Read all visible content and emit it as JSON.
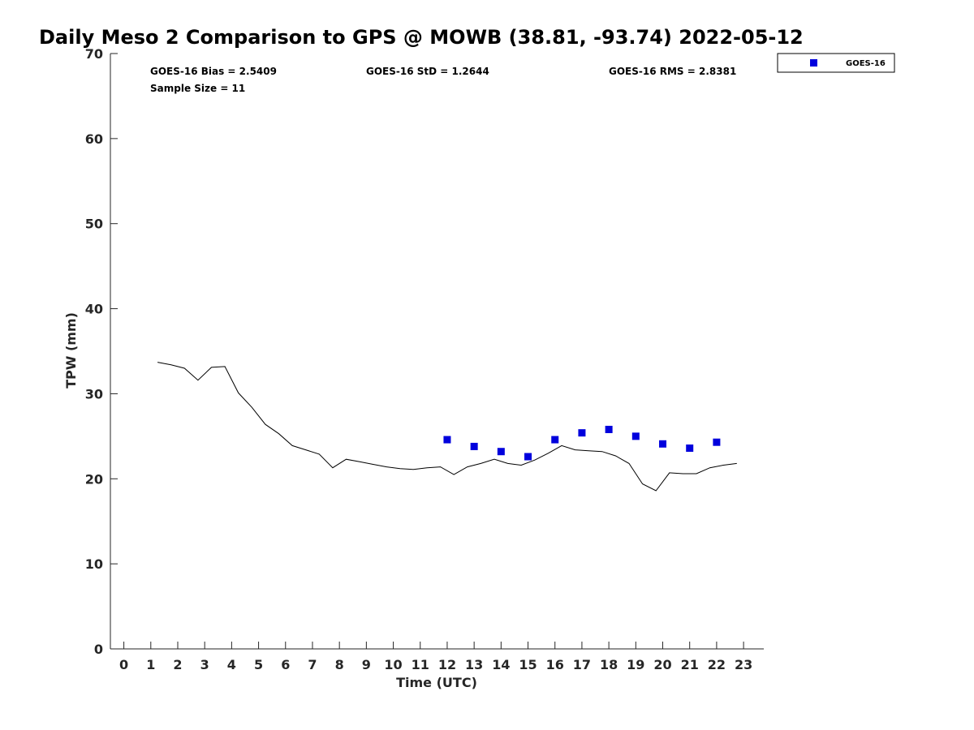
{
  "chart_data": {
    "type": "line",
    "title": "Daily Meso 2 Comparison to GPS @ MOWB (38.81, -93.74) 2022-05-12",
    "xlabel": "Time (UTC)",
    "ylabel": "TPW (mm)",
    "xlim": [
      -0.5,
      23.75
    ],
    "ylim": [
      0,
      70
    ],
    "x_ticks": [
      0,
      1,
      2,
      3,
      4,
      5,
      6,
      7,
      8,
      9,
      10,
      11,
      12,
      13,
      14,
      15,
      16,
      17,
      18,
      19,
      20,
      21,
      22,
      23
    ],
    "y_ticks": [
      0,
      10,
      20,
      30,
      40,
      50,
      60,
      70
    ],
    "grid": false,
    "legend": {
      "position": "top-right-outside",
      "entries": [
        "GOES-16"
      ]
    },
    "stats": {
      "bias": "GOES-16 Bias = 2.5409",
      "std": "GOES-16 StD = 1.2644",
      "rms": "GOES-16 RMS = 2.8381",
      "sample": "Sample Size = 11"
    },
    "series": [
      {
        "style": "line",
        "color": "#000000",
        "x": [
          1.25,
          1.75,
          2.25,
          2.75,
          3.25,
          3.75,
          4.25,
          4.75,
          5.25,
          5.75,
          6.25,
          6.75,
          7.25,
          7.75,
          8.25,
          8.75,
          9.25,
          9.75,
          10.25,
          10.75,
          11.25,
          11.75,
          12.25,
          12.75,
          13.25,
          13.75,
          14.25,
          14.75,
          15.25,
          15.75,
          16.25,
          16.75,
          17.25,
          17.75,
          18.25,
          18.75,
          19.25,
          19.75,
          20.25,
          20.75,
          21.25,
          21.75,
          22.25,
          22.75
        ],
        "y": [
          33.7,
          33.4,
          33.0,
          31.6,
          33.1,
          33.2,
          30.1,
          28.4,
          26.4,
          25.3,
          23.9,
          23.4,
          22.9,
          21.3,
          22.3,
          22.0,
          21.7,
          21.4,
          21.2,
          21.1,
          21.3,
          21.4,
          20.5,
          21.4,
          21.8,
          22.3,
          21.8,
          21.6,
          22.2,
          23.0,
          23.9,
          23.4,
          23.3,
          23.2,
          22.7,
          21.8,
          19.4,
          18.6,
          20.7,
          20.6,
          20.6,
          21.3,
          21.6,
          21.8
        ]
      },
      {
        "name": "GOES-16",
        "style": "scatter",
        "marker": "square",
        "color": "#0000dd",
        "x": [
          12,
          13,
          14,
          15,
          16,
          17,
          18,
          19,
          20,
          21,
          22
        ],
        "y": [
          24.6,
          23.8,
          23.2,
          22.6,
          24.6,
          25.4,
          25.8,
          25.0,
          24.1,
          23.6,
          24.3
        ]
      }
    ]
  }
}
